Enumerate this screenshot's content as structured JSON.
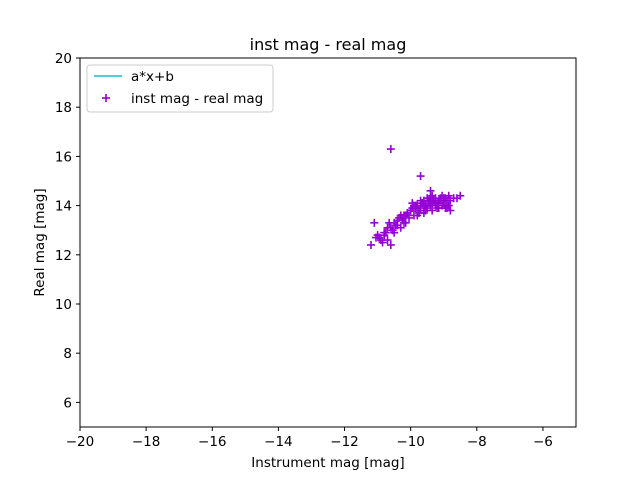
{
  "chart_data": {
    "type": "scatter",
    "title": "inst mag - real mag",
    "xlabel": "Instrument mag [mag]",
    "ylabel": "Real mag [mag]",
    "xlim": [
      -20,
      -5
    ],
    "ylim": [
      5,
      20
    ],
    "x_ticks": [
      -20,
      -18,
      -16,
      -14,
      -12,
      -10,
      -8,
      -6
    ],
    "x_tick_labels": [
      "−20",
      "−18",
      "−16",
      "−14",
      "−12",
      "−10",
      "−8",
      "−6"
    ],
    "y_ticks": [
      6,
      8,
      10,
      12,
      14,
      16,
      18,
      20
    ],
    "y_tick_labels": [
      "6",
      "8",
      "10",
      "12",
      "14",
      "16",
      "18",
      "20"
    ],
    "grid": false,
    "legend_placement": "top-left",
    "series": [
      {
        "name": "a*x+b",
        "kind": "line",
        "color": "#17becf",
        "x": [],
        "y": []
      },
      {
        "name": "inst mag - real mag",
        "kind": "scatter",
        "marker": "plus",
        "color": "#9400d3",
        "x": [
          -10.6,
          -9.7,
          -11.2,
          -11.05,
          -11.0,
          -10.9,
          -10.8,
          -10.7,
          -10.6,
          -10.55,
          -10.5,
          -10.4,
          -10.35,
          -10.3,
          -10.25,
          -10.2,
          -10.15,
          -10.1,
          -10.05,
          -10.0,
          -9.95,
          -9.9,
          -9.85,
          -9.8,
          -9.75,
          -9.7,
          -9.65,
          -9.6,
          -9.55,
          -9.5,
          -9.45,
          -9.4,
          -9.35,
          -9.3,
          -9.25,
          -9.2,
          -9.15,
          -9.1,
          -9.05,
          -9.0,
          -8.95,
          -8.9,
          -8.85,
          -8.8,
          -8.7,
          -8.6,
          -8.5,
          -10.8,
          -10.7,
          -10.65,
          -10.5,
          -10.45,
          -10.3,
          -10.2,
          -10.1,
          -10.0,
          -9.9,
          -9.8,
          -9.7,
          -9.6,
          -9.5,
          -9.45,
          -9.4,
          -9.35,
          -9.3,
          -9.25,
          -9.2,
          -9.1,
          -9.0,
          -8.9,
          -8.8,
          -11.1,
          -10.95,
          -10.85,
          -10.75,
          -10.6,
          -10.4,
          -10.25,
          -10.15,
          -9.95,
          -9.85,
          -9.75,
          -9.65,
          -9.55,
          -9.45,
          -9.35,
          -9.15,
          -9.05,
          -8.95,
          -8.85,
          -9.6,
          -9.4
        ],
        "y": [
          16.3,
          15.2,
          12.4,
          12.7,
          12.8,
          12.6,
          12.9,
          12.6,
          12.4,
          13.0,
          13.3,
          13.2,
          13.5,
          13.1,
          13.4,
          13.6,
          13.3,
          13.7,
          13.5,
          13.8,
          14.1,
          13.6,
          13.9,
          14.0,
          13.7,
          13.9,
          14.1,
          14.2,
          13.8,
          14.3,
          14.1,
          14.0,
          14.4,
          14.2,
          14.0,
          14.1,
          13.9,
          14.3,
          14.0,
          14.1,
          13.9,
          14.2,
          14.0,
          13.8,
          14.3,
          14.3,
          14.4,
          12.8,
          13.1,
          13.3,
          12.9,
          13.2,
          13.6,
          13.3,
          13.7,
          13.8,
          14.0,
          13.6,
          14.2,
          13.7,
          13.9,
          14.2,
          14.6,
          13.8,
          14.2,
          14.3,
          13.9,
          14.2,
          14.3,
          13.9,
          14.2,
          13.3,
          12.7,
          12.5,
          12.9,
          13.1,
          13.4,
          13.5,
          13.6,
          13.9,
          14.0,
          13.8,
          14.1,
          14.0,
          14.2,
          14.1,
          14.2,
          14.4,
          14.3,
          14.4,
          14.0,
          14.3
        ]
      }
    ]
  }
}
